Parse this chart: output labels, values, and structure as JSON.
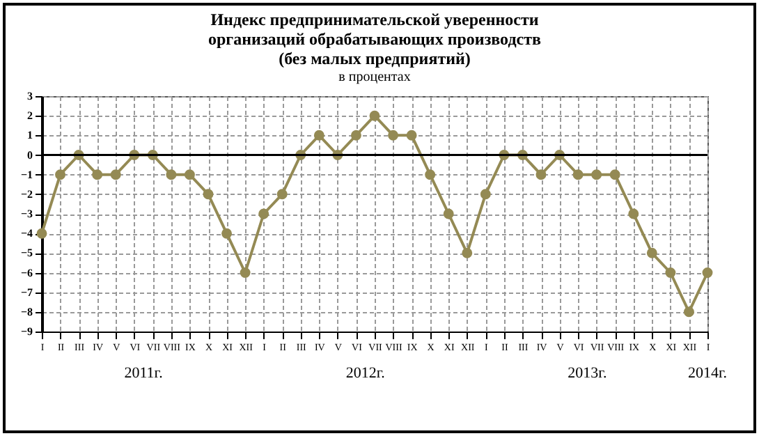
{
  "chart_data": {
    "type": "line",
    "title": [
      "Индекс предпринимательской уверенности",
      "организаций обрабатывающих производств",
      "(без малых предприятий)"
    ],
    "subtitle": "в процентах",
    "categories": [
      "I",
      "II",
      "III",
      "IV",
      "V",
      "VI",
      "VII",
      "VIII",
      "IX",
      "X",
      "XI",
      "XII",
      "I",
      "II",
      "III",
      "IV",
      "V",
      "VI",
      "VII",
      "VIII",
      "IX",
      "X",
      "XI",
      "XII",
      "I",
      "II",
      "III",
      "IV",
      "V",
      "VI",
      "VII",
      "VIII",
      "IX",
      "X",
      "XI",
      "XII",
      "I"
    ],
    "series": [
      {
        "color": "#948a54",
        "values": [
          -4,
          -1,
          0,
          -1,
          -1,
          0,
          0,
          -1,
          -1,
          -2,
          -4,
          -6,
          -3,
          -2,
          0,
          1,
          0,
          1,
          2,
          1,
          1,
          -1,
          -3,
          -5,
          -2,
          0,
          0,
          -1,
          0,
          -1,
          -1,
          -1,
          -3,
          -5,
          -6,
          -8,
          -6
        ]
      }
    ],
    "ylim": [
      -9,
      3
    ],
    "yticks": [
      -9,
      -8,
      -7,
      -6,
      -5,
      -4,
      -3,
      -2,
      -1,
      0,
      1,
      2,
      3
    ],
    "grid": true,
    "marker": "circle",
    "line_style": "solid",
    "ref_lines": [
      {
        "axis": "y",
        "value": 0,
        "color": "#000000"
      }
    ],
    "annotations": [
      "2011г.",
      "2012г.",
      "2013г.",
      "2014г."
    ]
  }
}
